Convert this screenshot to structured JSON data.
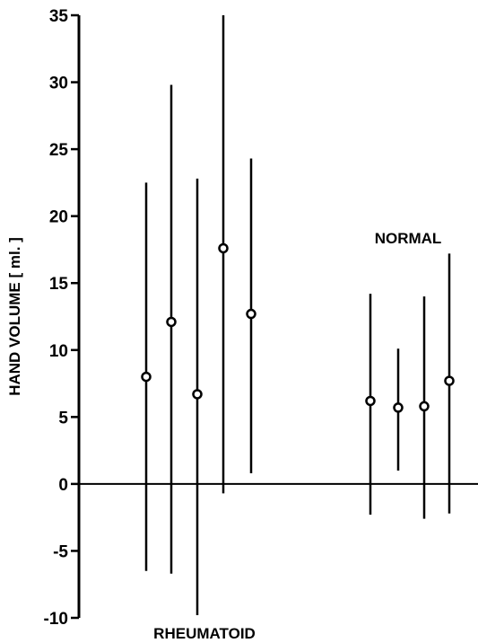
{
  "chart_data": {
    "type": "scatter",
    "title": "",
    "xlabel": "",
    "ylabel": "HAND VOLUME [ ml. ]",
    "ylim": [
      -10,
      35
    ],
    "yticks": [
      -10,
      -5,
      0,
      5,
      10,
      15,
      20,
      25,
      30,
      35
    ],
    "ytick_labels": [
      "-10",
      "-5",
      "0",
      "5",
      "10",
      "15",
      "20",
      "25",
      "30",
      "35"
    ],
    "grid": false,
    "groups": [
      {
        "label": "RHEUMATOID",
        "points": [
          {
            "mean": 8.0,
            "low": -6.5,
            "high": 22.5
          },
          {
            "mean": 12.1,
            "low": -6.7,
            "high": 29.8
          },
          {
            "mean": 6.7,
            "low": -9.8,
            "high": 22.8
          },
          {
            "mean": 17.6,
            "low": -0.7,
            "high": 35.0
          },
          {
            "mean": 12.7,
            "low": 0.8,
            "high": 24.3
          }
        ]
      },
      {
        "label": "NORMAL",
        "points": [
          {
            "mean": 6.2,
            "low": -2.3,
            "high": 14.2
          },
          {
            "mean": 5.7,
            "low": 1.0,
            "high": 10.1
          },
          {
            "mean": 5.8,
            "low": -2.6,
            "high": 14.0
          },
          {
            "mean": 7.7,
            "low": -2.2,
            "high": 17.2
          }
        ]
      }
    ]
  }
}
